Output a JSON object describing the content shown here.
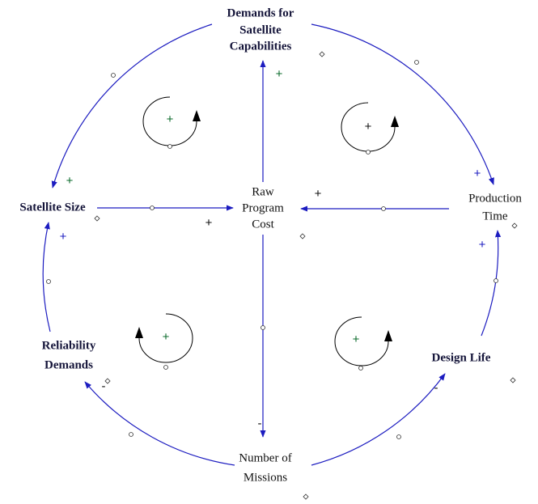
{
  "nodes": [
    {
      "lines": [
        "Demands for",
        "Satellite",
        "Capabilities"
      ]
    },
    {
      "lines": [
        "Satellite Size"
      ]
    },
    {
      "lines": [
        "Raw",
        "Program",
        "Cost"
      ]
    },
    {
      "lines": [
        "Production",
        "Time"
      ]
    },
    {
      "lines": [
        "Reliability",
        "Demands"
      ]
    },
    {
      "lines": [
        "Design Life"
      ]
    },
    {
      "lines": [
        "Number of",
        "Missions"
      ]
    }
  ],
  "links": [
    {
      "polarity": "+"
    },
    {
      "polarity": "+"
    },
    {
      "polarity": "+"
    },
    {
      "polarity": "+"
    },
    {
      "polarity": "+"
    },
    {
      "polarity": "-"
    },
    {
      "polarity": "-"
    },
    {
      "polarity": "-"
    },
    {
      "polarity": "+"
    },
    {
      "polarity": "+"
    }
  ],
  "loops": [
    {
      "polarity": "+"
    },
    {
      "polarity": "+"
    },
    {
      "polarity": "+"
    },
    {
      "polarity": "+"
    }
  ]
}
